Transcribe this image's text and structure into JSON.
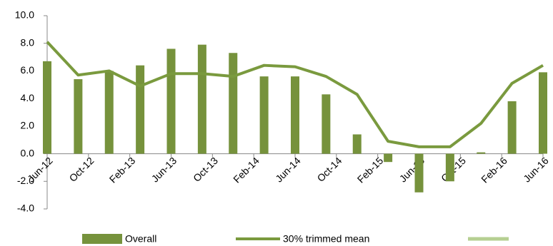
{
  "chart_data": {
    "type": "bar_line",
    "xlim": [
      0,
      48
    ],
    "xticks": [
      {
        "value": 0,
        "label": "Jun-12"
      },
      {
        "value": 4,
        "label": "Oct-12"
      },
      {
        "value": 8,
        "label": "Feb-13"
      },
      {
        "value": 12,
        "label": "Jun-13"
      },
      {
        "value": 16,
        "label": "Oct-13"
      },
      {
        "value": 20,
        "label": "Feb-14"
      },
      {
        "value": 24,
        "label": "Jun-14"
      },
      {
        "value": 28,
        "label": "Oct-14"
      },
      {
        "value": 32,
        "label": "Feb-15"
      },
      {
        "value": 36,
        "label": "Jun-15"
      },
      {
        "value": 40,
        "label": "Oct-15"
      },
      {
        "value": 44,
        "label": "Feb-16"
      },
      {
        "value": 48,
        "label": "Jun-16"
      }
    ],
    "ylim": [
      -4,
      10
    ],
    "yticks": [
      {
        "value": -4,
        "label": "-4.0"
      },
      {
        "value": -2,
        "label": "-2.0"
      },
      {
        "value": 0,
        "label": "0.0"
      },
      {
        "value": 2,
        "label": "2.0"
      },
      {
        "value": 4,
        "label": "4.0"
      },
      {
        "value": 6,
        "label": "6.0"
      },
      {
        "value": 8,
        "label": "8.0"
      },
      {
        "value": 10,
        "label": "10.0"
      }
    ],
    "grid": false,
    "legend": "bottom",
    "series": [
      {
        "name": "Overall",
        "kind": "bar",
        "color": "#76923c",
        "x": [
          0,
          3,
          6,
          9,
          12,
          15,
          18,
          21,
          24,
          27,
          30,
          33,
          36,
          39,
          42,
          45,
          48
        ],
        "values": [
          6.7,
          5.4,
          6.0,
          6.4,
          7.6,
          7.9,
          7.3,
          5.6,
          5.6,
          4.3,
          1.4,
          -0.6,
          -2.8,
          -2.0,
          0.1,
          3.8,
          5.9
        ]
      },
      {
        "name": "30% trimmed mean",
        "kind": "line",
        "color": "#7a9a3e",
        "x": [
          0,
          3,
          6,
          9,
          12,
          15,
          18,
          21,
          24,
          27,
          30,
          33,
          36,
          39,
          42,
          45,
          48
        ],
        "values": [
          8.1,
          5.7,
          6.0,
          4.9,
          5.8,
          5.8,
          5.6,
          6.4,
          6.3,
          5.6,
          4.3,
          0.9,
          0.5,
          0.5,
          2.2,
          5.1,
          6.4
        ]
      }
    ]
  }
}
